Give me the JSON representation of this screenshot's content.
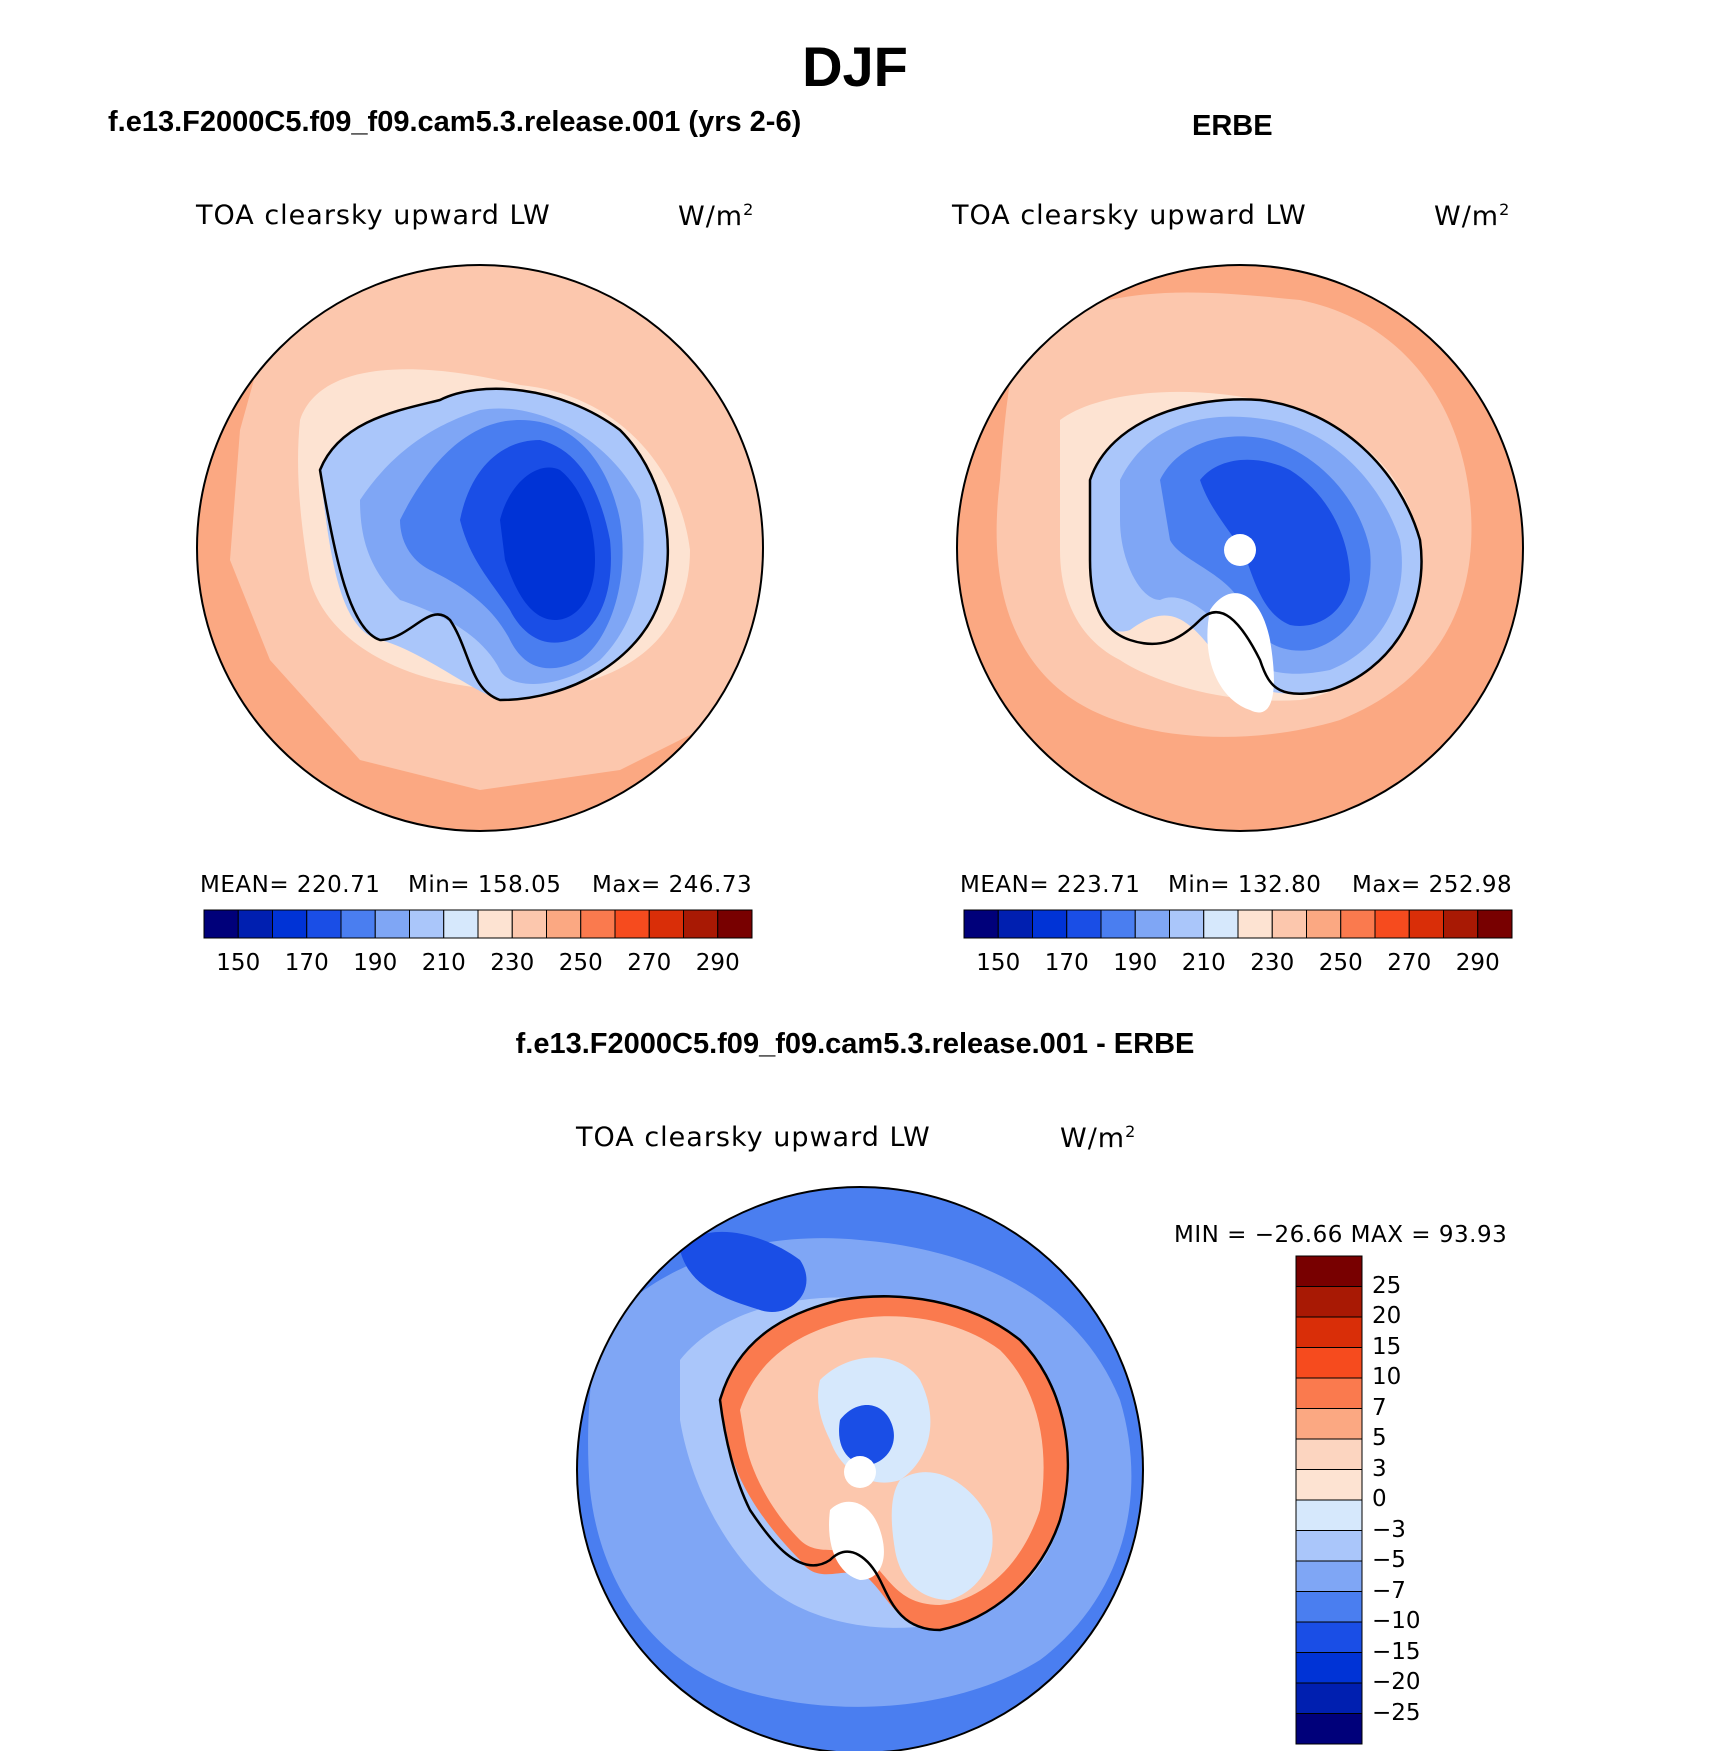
{
  "title": "DJF",
  "units_base": "W/m",
  "units_exp": "2",
  "panels": [
    {
      "case": "f.e13.F2000C5.f09_f09.cam5.3.release.001 (yrs 2-6)",
      "variable": "TOA clearsky upward LW",
      "mean": "MEAN= 220.71",
      "min": "Min= 158.05",
      "max": "Max= 246.73",
      "colorbar": {
        "colors": [
          "#00007a",
          "#001fb0",
          "#0033d6",
          "#1a4ee6",
          "#4a7ef0",
          "#7fa6f5",
          "#aac6fa",
          "#d6e8fc",
          "#fde3d2",
          "#fcc7ad",
          "#fba882",
          "#fa7a4e",
          "#f64b1e",
          "#d92e08",
          "#a81904",
          "#780000"
        ],
        "ticks": [
          "150",
          "170",
          "190",
          "210",
          "230",
          "250",
          "270",
          "290"
        ]
      }
    },
    {
      "case": "ERBE",
      "variable": "TOA clearsky upward LW",
      "mean": "MEAN= 223.71",
      "min": "Min= 132.80",
      "max": "Max= 252.98",
      "colorbar": {
        "colors": [
          "#00007a",
          "#001fb0",
          "#0033d6",
          "#1a4ee6",
          "#4a7ef0",
          "#7fa6f5",
          "#aac6fa",
          "#d6e8fc",
          "#fde3d2",
          "#fcc7ad",
          "#fba882",
          "#fa7a4e",
          "#f64b1e",
          "#d92e08",
          "#a81904",
          "#780000"
        ],
        "ticks": [
          "150",
          "170",
          "190",
          "210",
          "230",
          "250",
          "270",
          "290"
        ]
      }
    },
    {
      "case": "f.e13.F2000C5.f09_f09.cam5.3.release.001 - ERBE",
      "variable": "TOA clearsky upward LW",
      "minmax": "MIN = −26.66 MAX =  93.93",
      "colorbar": {
        "colors": [
          "#780000",
          "#a81904",
          "#d92e08",
          "#f64b1e",
          "#fa7a4e",
          "#fba882",
          "#fcd5c0",
          "#fde3d2",
          "#d6e8fc",
          "#aac6fa",
          "#7fa6f5",
          "#4a7ef0",
          "#1a4ee6",
          "#0033d6",
          "#001fb0",
          "#00007a"
        ],
        "ticks": [
          "25",
          "20",
          "15",
          "10",
          "7",
          "5",
          "3",
          "0",
          "−3",
          "−5",
          "−7",
          "−10",
          "−15",
          "−20",
          "−25"
        ]
      }
    }
  ]
}
